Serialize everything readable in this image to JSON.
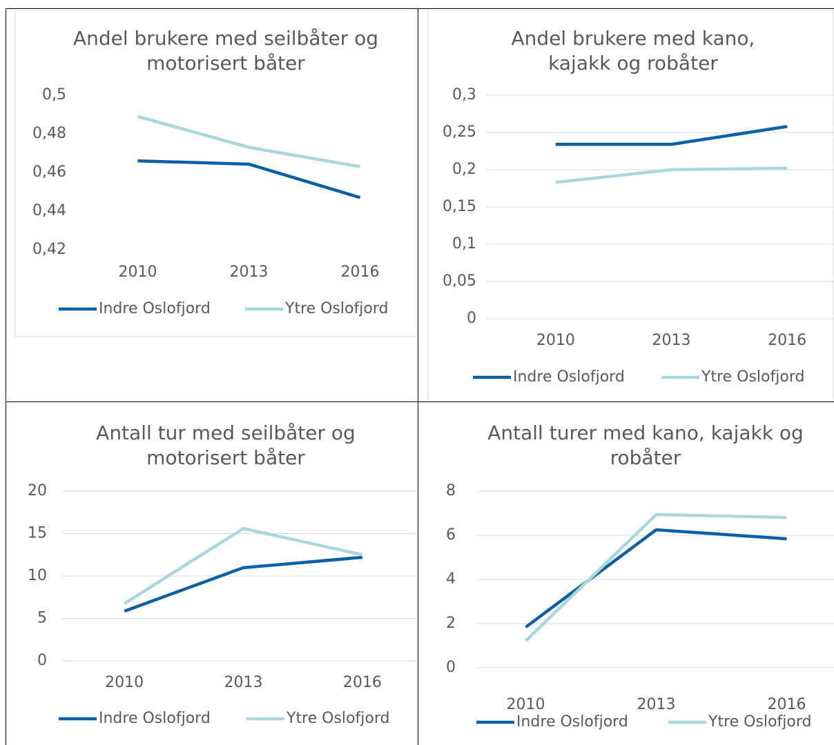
{
  "chart_data": [
    {
      "type": "line",
      "title": "Andel brukere med seilbåter og motorisert båter",
      "categories": [
        "2010",
        "2013",
        "2016"
      ],
      "series": [
        {
          "name": "Indre Oslofjord",
          "color": "#0b5fa5",
          "values": [
            0.466,
            0.4643,
            0.447
          ]
        },
        {
          "name": "Ytre Oslofjord",
          "color": "#a8d8dc",
          "values": [
            0.489,
            0.473,
            0.463
          ]
        }
      ],
      "ylim": [
        0.42,
        0.5
      ],
      "yticks": [
        {
          "value": 0.42,
          "label": "0,42"
        },
        {
          "value": 0.44,
          "label": "0,44"
        },
        {
          "value": 0.46,
          "label": "0,46"
        },
        {
          "value": 0.48,
          "label": "0,48"
        },
        {
          "value": 0.5,
          "label": "0,5"
        }
      ],
      "grid": false,
      "legend": "bottom"
    },
    {
      "type": "line",
      "title": "Andel brukere med kano, kajakk og robåter",
      "categories": [
        "2010",
        "2013",
        "2016"
      ],
      "series": [
        {
          "name": "Indre Oslofjord",
          "color": "#0b5fa5",
          "values": [
            0.234,
            0.234,
            0.258
          ]
        },
        {
          "name": "Ytre Oslofjord",
          "color": "#a8d8dc",
          "values": [
            0.183,
            0.2,
            0.202
          ]
        }
      ],
      "ylim": [
        0,
        0.3
      ],
      "yticks": [
        0,
        {
          "value": 0.05,
          "label": "0,05"
        },
        {
          "value": 0.1,
          "label": "0,1"
        },
        {
          "value": 0.15,
          "label": "0,15"
        },
        {
          "value": 0.2,
          "label": "0,2"
        },
        {
          "value": 0.25,
          "label": "0,25"
        },
        {
          "value": 0.3,
          "label": "0,3"
        }
      ],
      "grid": true,
      "legend": "bottom"
    },
    {
      "type": "line",
      "title": "Antall tur med seilbåter og motorisert båter",
      "categories": [
        "2010",
        "2013",
        "2016"
      ],
      "series": [
        {
          "name": "Indre Oslofjord",
          "color": "#0b5fa5",
          "values": [
            5.85,
            10.98,
            12.2
          ]
        },
        {
          "name": "Ytre Oslofjord",
          "color": "#a8d8dc",
          "values": [
            6.75,
            15.6,
            12.5
          ]
        }
      ],
      "ylim": [
        0,
        20
      ],
      "yticks": [
        0,
        5,
        10,
        15,
        20
      ],
      "grid": true,
      "legend": "bottom"
    },
    {
      "type": "line",
      "title": "Antall turer med kano, kajakk og robåter",
      "categories": [
        "2010",
        "2013",
        "2016"
      ],
      "series": [
        {
          "name": "Indre Oslofjord",
          "color": "#0b5fa5",
          "values": [
            1.84,
            6.25,
            5.84
          ]
        },
        {
          "name": "Ytre Oslofjord",
          "color": "#a8d8dc",
          "values": [
            1.22,
            6.94,
            6.81
          ]
        }
      ],
      "ylim": [
        0,
        8
      ],
      "yticks": [
        0,
        2,
        4,
        6,
        8
      ],
      "grid": true,
      "legend": "bottom"
    }
  ]
}
